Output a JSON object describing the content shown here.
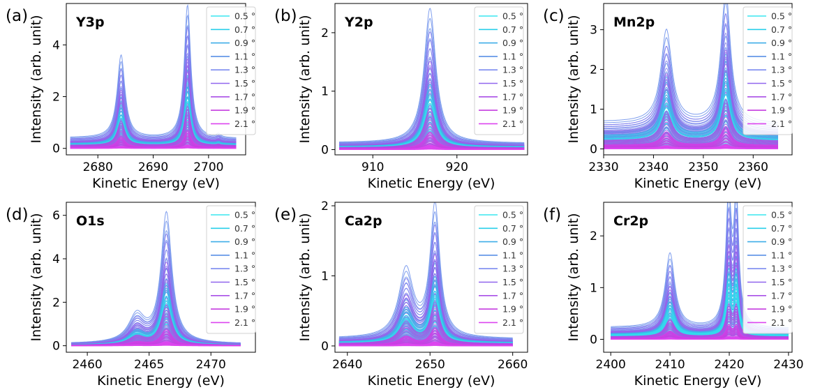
{
  "figure": {
    "legend_position": "top-right",
    "grid": false,
    "colors": {
      "0.5": "#38e6ef",
      "0.7": "#28cfea",
      "0.9": "#3eaee8",
      "1.1": "#5a90e6",
      "1.3": "#7b8af0",
      "1.5": "#9066ee",
      "1.7": "#a94fe6",
      "1.9": "#c53cdf",
      "2.1": "#dc45ef"
    }
  },
  "chart_data": [
    {
      "panel": "(a)",
      "type": "line",
      "title": "Y3p",
      "xlabel": "Kinetic Energy (eV)",
      "ylabel": "Intensity (arb. unit)",
      "xlim": [
        2674.3,
        2706.7
      ],
      "ylim": [
        -0.25,
        5.6
      ],
      "xticks": [
        2680,
        2690,
        2700
      ],
      "yticks": [
        0,
        2,
        4
      ],
      "xrange": [
        2675,
        2705
      ],
      "background": 0.45,
      "peaks": [
        {
          "center": 2684.2,
          "height": 3.25,
          "width": 0.95
        },
        {
          "center": 2696.2,
          "height": 5.4,
          "width": 0.8
        },
        {
          "center": 2701.8,
          "height": 0.14,
          "width": 0.5
        }
      ],
      "series": [
        {
          "name": "0.5 °",
          "values": {
            "max_intensity": 1.9
          }
        },
        {
          "name": "0.7 °",
          "values": {
            "max_intensity": 2.5
          }
        },
        {
          "name": "0.9 °",
          "values": {
            "max_intensity": 3.0
          }
        },
        {
          "name": "1.1 °",
          "values": {
            "max_intensity": 5.45
          }
        },
        {
          "name": "1.3 °",
          "values": {
            "max_intensity": 4.6
          }
        },
        {
          "name": "1.5 °",
          "values": {
            "max_intensity": 3.4
          }
        },
        {
          "name": "1.7 °",
          "values": {
            "max_intensity": 1.6
          }
        },
        {
          "name": "1.9 °",
          "values": {
            "max_intensity": 0.7
          }
        },
        {
          "name": "2.1 °",
          "values": {
            "max_intensity": 0.15
          }
        }
      ]
    },
    {
      "panel": "(b)",
      "type": "line",
      "title": "Y2p",
      "xlabel": "Kinetic Energy (eV)",
      "ylabel": "Intensity (arb. unit)",
      "xlim": [
        905.5,
        928.4
      ],
      "ylim": [
        -0.09,
        2.5
      ],
      "xticks": [
        910,
        920
      ],
      "yticks": [
        0,
        1,
        2
      ],
      "xrange": [
        906,
        928
      ],
      "background": 0.13,
      "peaks": [
        {
          "center": 916.8,
          "height": 2.4,
          "width": 0.95
        }
      ],
      "series": [
        {
          "name": "0.5 °",
          "values": {
            "max_intensity": 0.9
          }
        },
        {
          "name": "0.7 °",
          "values": {
            "max_intensity": 1.1
          }
        },
        {
          "name": "0.9 °",
          "values": {
            "max_intensity": 1.3
          }
        },
        {
          "name": "1.1 °",
          "values": {
            "max_intensity": 2.4
          }
        },
        {
          "name": "1.3 °",
          "values": {
            "max_intensity": 2.0
          }
        },
        {
          "name": "1.5 °",
          "values": {
            "max_intensity": 1.5
          }
        },
        {
          "name": "1.7 °",
          "values": {
            "max_intensity": 0.7
          }
        },
        {
          "name": "1.9 °",
          "values": {
            "max_intensity": 0.3
          }
        },
        {
          "name": "2.1 °",
          "values": {
            "max_intensity": 0.08
          }
        }
      ]
    },
    {
      "panel": "(c)",
      "type": "line",
      "title": "Mn2p",
      "xlabel": "Kinetic Energy (eV)",
      "ylabel": "Intensity (arb. unit)",
      "xlim": [
        2330,
        2367.8
      ],
      "ylim": [
        -0.15,
        3.66
      ],
      "xticks": [
        2330,
        2340,
        2350,
        2360
      ],
      "yticks": [
        0,
        1,
        2,
        3
      ],
      "xrange": [
        2330,
        2365
      ],
      "background": 0.75,
      "peaks": [
        {
          "center": 2342.6,
          "height": 2.4,
          "width": 1.5
        },
        {
          "center": 2354.5,
          "height": 3.5,
          "width": 1.3
        }
      ],
      "series": [
        {
          "name": "0.5 °",
          "values": {
            "max_intensity": 1.3
          }
        },
        {
          "name": "0.7 °",
          "values": {
            "max_intensity": 1.7
          }
        },
        {
          "name": "0.9 °",
          "values": {
            "max_intensity": 2.1
          }
        },
        {
          "name": "1.1 °",
          "values": {
            "max_intensity": 3.5
          }
        },
        {
          "name": "1.3 °",
          "values": {
            "max_intensity": 3.0
          }
        },
        {
          "name": "1.5 °",
          "values": {
            "max_intensity": 2.2
          }
        },
        {
          "name": "1.7 °",
          "values": {
            "max_intensity": 1.1
          }
        },
        {
          "name": "1.9 °",
          "values": {
            "max_intensity": 0.5
          }
        },
        {
          "name": "2.1 °",
          "values": {
            "max_intensity": 0.1
          }
        }
      ]
    },
    {
      "panel": "(d)",
      "type": "line",
      "title": "O1s",
      "xlabel": "Kinetic Energy (eV)",
      "ylabel": "Intensity (arb. unit)",
      "xlim": [
        2458.3,
        2473.6
      ],
      "ylim": [
        -0.3,
        6.6
      ],
      "xticks": [
        2460,
        2465,
        2470
      ],
      "yticks": [
        0,
        2,
        4,
        6
      ],
      "xrange": [
        2458.7,
        2472.4
      ],
      "background": 0.1,
      "peaks": [
        {
          "center": 2466.4,
          "height": 6.25,
          "width": 0.6
        },
        {
          "center": 2464.0,
          "height": 1.3,
          "width": 0.9
        }
      ],
      "series": [
        {
          "name": "0.5 °",
          "values": {
            "max_intensity": 2.3
          }
        },
        {
          "name": "0.7 °",
          "values": {
            "max_intensity": 2.9
          }
        },
        {
          "name": "0.9 °",
          "values": {
            "max_intensity": 3.6
          }
        },
        {
          "name": "1.1 °",
          "values": {
            "max_intensity": 6.25
          }
        },
        {
          "name": "1.3 °",
          "values": {
            "max_intensity": 5.2
          }
        },
        {
          "name": "1.5 °",
          "values": {
            "max_intensity": 3.9
          }
        },
        {
          "name": "1.7 °",
          "values": {
            "max_intensity": 1.9
          }
        },
        {
          "name": "1.9 °",
          "values": {
            "max_intensity": 0.8
          }
        },
        {
          "name": "2.1 °",
          "values": {
            "max_intensity": 0.2
          }
        }
      ]
    },
    {
      "panel": "(e)",
      "type": "line",
      "title": "Ca2p",
      "xlabel": "Kinetic Energy (eV)",
      "ylabel": "Intensity (arb. unit)",
      "xlim": [
        2638.5,
        2661.8
      ],
      "ylim": [
        -0.09,
        2.05
      ],
      "xticks": [
        2640,
        2650,
        2660
      ],
      "yticks": [
        0,
        1,
        2
      ],
      "xrange": [
        2639,
        2660
      ],
      "background": 0.12,
      "peaks": [
        {
          "center": 2647.1,
          "height": 1.0,
          "width": 1.2
        },
        {
          "center": 2650.6,
          "height": 1.97,
          "width": 0.8
        }
      ],
      "series": [
        {
          "name": "0.5 °",
          "values": {
            "max_intensity": 0.75
          }
        },
        {
          "name": "0.7 °",
          "values": {
            "max_intensity": 0.95
          }
        },
        {
          "name": "0.9 °",
          "values": {
            "max_intensity": 1.15
          }
        },
        {
          "name": "1.1 °",
          "values": {
            "max_intensity": 1.97
          }
        },
        {
          "name": "1.3 °",
          "values": {
            "max_intensity": 1.65
          }
        },
        {
          "name": "1.5 °",
          "values": {
            "max_intensity": 1.25
          }
        },
        {
          "name": "1.7 °",
          "values": {
            "max_intensity": 0.6
          }
        },
        {
          "name": "1.9 °",
          "values": {
            "max_intensity": 0.25
          }
        },
        {
          "name": "2.1 °",
          "values": {
            "max_intensity": 0.06
          }
        }
      ]
    },
    {
      "panel": "(f)",
      "type": "line",
      "title": "Cr2p",
      "xlabel": "Kinetic Energy (eV)",
      "ylabel": "Intensity (arb. unit)",
      "xlim": [
        2398.8,
        2430.6
      ],
      "ylim": [
        -0.25,
        2.65
      ],
      "xticks": [
        2400,
        2410,
        2420,
        2430
      ],
      "yticks": [
        0,
        1,
        2
      ],
      "xrange": [
        2400,
        2430
      ],
      "background": 0.25,
      "peaks": [
        {
          "center": 2410.0,
          "height": 1.45,
          "width": 1.1
        },
        {
          "center": 2419.9,
          "height": 2.55,
          "width": 0.65
        },
        {
          "center": 2421.2,
          "height": 2.45,
          "width": 0.55
        }
      ],
      "series": [
        {
          "name": "0.5 °",
          "values": {
            "max_intensity": 1.0
          }
        },
        {
          "name": "0.7 °",
          "values": {
            "max_intensity": 1.2
          }
        },
        {
          "name": "0.9 °",
          "values": {
            "max_intensity": 1.4
          }
        },
        {
          "name": "1.1 °",
          "values": {
            "max_intensity": 2.6
          }
        },
        {
          "name": "1.3 °",
          "values": {
            "max_intensity": 2.2
          }
        },
        {
          "name": "1.5 °",
          "values": {
            "max_intensity": 1.6
          }
        },
        {
          "name": "1.7 °",
          "values": {
            "max_intensity": 0.6
          }
        },
        {
          "name": "1.9 °",
          "values": {
            "max_intensity": 0.25
          }
        },
        {
          "name": "2.1 °",
          "values": {
            "max_intensity": 0.05
          }
        }
      ]
    }
  ]
}
